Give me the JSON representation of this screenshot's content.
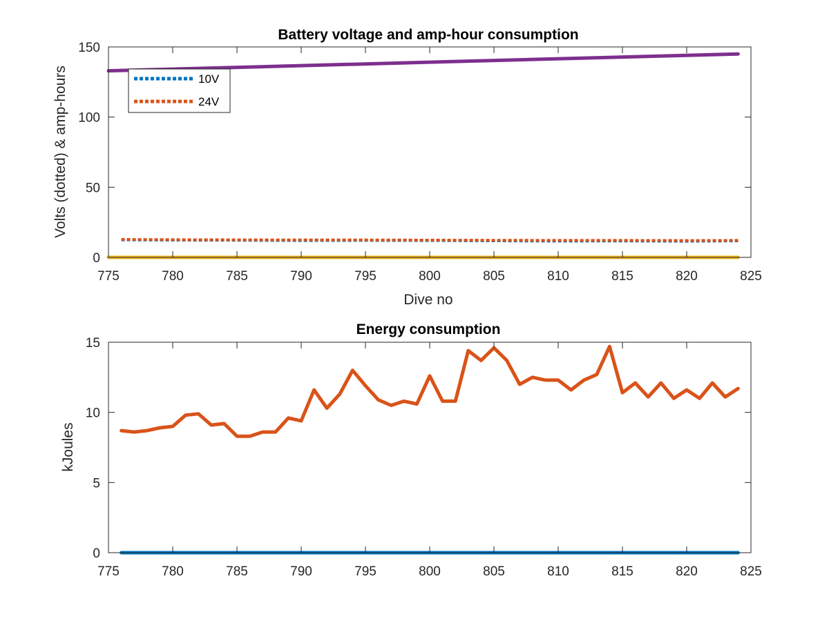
{
  "chart_data": [
    {
      "type": "line",
      "title": "Battery voltage and amp-hour consumption",
      "xlabel": "Dive no",
      "ylabel": "Volts (dotted) & amp-hours",
      "xlim": [
        775,
        825
      ],
      "ylim": [
        0,
        150
      ],
      "xticks": [
        "775",
        "780",
        "785",
        "790",
        "795",
        "800",
        "805",
        "810",
        "815",
        "820",
        "825"
      ],
      "yticks": [
        "0",
        "50",
        "100",
        "150"
      ],
      "grid": false,
      "legend_location": "top-left",
      "series": [
        {
          "name": "10V",
          "style": "dotted",
          "color": "#0072BD",
          "x": [
            776,
            780,
            785,
            790,
            795,
            800,
            805,
            810,
            815,
            820,
            824
          ],
          "y": [
            12.5,
            12.3,
            12.2,
            12.0,
            12.1,
            12.0,
            11.8,
            11.6,
            11.7,
            11.5,
            11.8
          ]
        },
        {
          "name": "24V",
          "style": "dotted",
          "color": "#D95319",
          "x": [
            776,
            780,
            785,
            790,
            795,
            800,
            805,
            810,
            815,
            820,
            824
          ],
          "y": [
            12.8,
            12.6,
            12.5,
            12.4,
            12.4,
            12.3,
            12.2,
            12.1,
            12.1,
            12.0,
            12.1
          ]
        },
        {
          "style": "solid",
          "color": "#7E2F8E",
          "x": [
            775,
            824
          ],
          "y": [
            133,
            145
          ]
        },
        {
          "style": "solid",
          "color": "#EDB120",
          "x": [
            775,
            824
          ],
          "y": [
            0,
            0
          ]
        }
      ]
    },
    {
      "type": "line",
      "title": "Energy consumption",
      "xlabel": "",
      "ylabel": "kJoules",
      "xlim": [
        775,
        825
      ],
      "ylim": [
        0,
        15
      ],
      "xticks": [
        "775",
        "780",
        "785",
        "790",
        "795",
        "800",
        "805",
        "810",
        "815",
        "820",
        "825"
      ],
      "yticks": [
        "0",
        "5",
        "10",
        "15"
      ],
      "grid": false,
      "series": [
        {
          "style": "solid",
          "color": "#D95319",
          "x": [
            776,
            777,
            778,
            779,
            780,
            781,
            782,
            783,
            784,
            785,
            786,
            787,
            788,
            789,
            790,
            791,
            792,
            793,
            794,
            795,
            796,
            797,
            798,
            799,
            800,
            801,
            802,
            803,
            804,
            805,
            806,
            807,
            808,
            809,
            810,
            811,
            812,
            813,
            814,
            815,
            816,
            817,
            818,
            819,
            820,
            821,
            822,
            823,
            824
          ],
          "y": [
            8.7,
            8.6,
            8.7,
            8.9,
            9.0,
            9.8,
            9.9,
            9.1,
            9.2,
            8.3,
            8.3,
            8.6,
            8.6,
            9.6,
            9.4,
            11.6,
            10.3,
            11.3,
            13.0,
            11.9,
            10.9,
            10.5,
            10.8,
            10.6,
            12.6,
            10.8,
            10.8,
            14.4,
            13.7,
            14.6,
            13.7,
            12.0,
            12.5,
            12.3,
            12.3,
            11.6,
            12.3,
            12.7,
            14.7,
            11.4,
            12.1,
            11.1,
            12.1,
            11.0,
            11.6,
            11.0,
            12.1,
            11.1,
            11.7
          ]
        },
        {
          "style": "solid",
          "color": "#0072BD",
          "x": [
            776,
            824
          ],
          "y": [
            0,
            0
          ]
        }
      ]
    }
  ]
}
